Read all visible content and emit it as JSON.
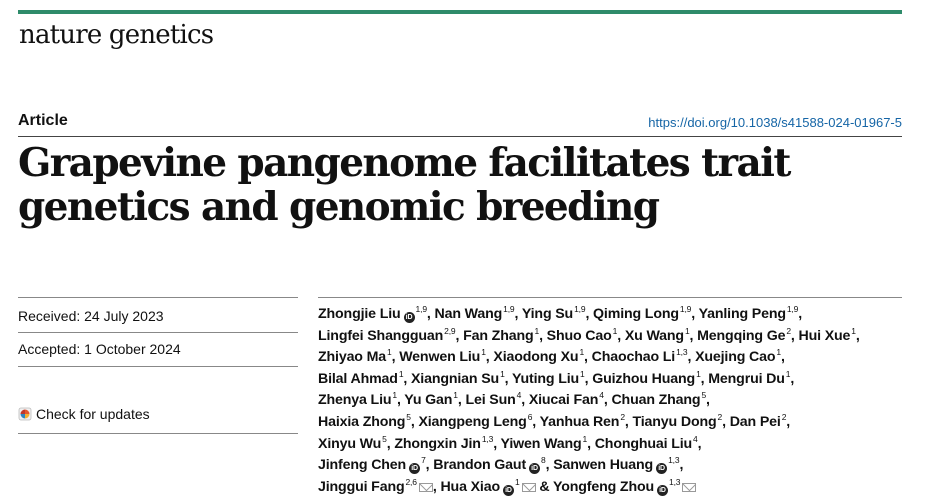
{
  "header": {
    "journal": "nature genetics",
    "section": "Article",
    "doi": "https://doi.org/10.1038/s41588-024-01967-5",
    "brand_color": "#2e8b6a"
  },
  "title": {
    "line1": "Grapevine pangenome facilitates trait",
    "line2": "genetics and genomic breeding"
  },
  "meta": {
    "received": "Received: 24 July 2023",
    "accepted": "Accepted: 1 October 2024",
    "check_updates": "Check for updates"
  },
  "authors": [
    {
      "name": "Zhongjie Liu",
      "sup": "1,9",
      "orcid": true
    },
    {
      "name": "Nan Wang",
      "sup": "1,9"
    },
    {
      "name": "Ying Su",
      "sup": "1,9"
    },
    {
      "name": "Qiming Long",
      "sup": "1,9"
    },
    {
      "name": "Yanling Peng",
      "sup": "1,9"
    },
    {
      "name": "Lingfei Shangguan",
      "sup": "2,9"
    },
    {
      "name": "Fan Zhang",
      "sup": "1"
    },
    {
      "name": "Shuo Cao",
      "sup": "1"
    },
    {
      "name": "Xu Wang",
      "sup": "1"
    },
    {
      "name": "Mengqing Ge",
      "sup": "2"
    },
    {
      "name": "Hui Xue",
      "sup": "1"
    },
    {
      "name": "Zhiyao Ma",
      "sup": "1"
    },
    {
      "name": "Wenwen Liu",
      "sup": "1"
    },
    {
      "name": "Xiaodong Xu",
      "sup": "1"
    },
    {
      "name": "Chaochao Li",
      "sup": "1,3"
    },
    {
      "name": "Xuejing Cao",
      "sup": "1"
    },
    {
      "name": "Bilal Ahmad",
      "sup": "1"
    },
    {
      "name": "Xiangnian Su",
      "sup": "1"
    },
    {
      "name": "Yuting Liu",
      "sup": "1"
    },
    {
      "name": "Guizhou Huang",
      "sup": "1"
    },
    {
      "name": "Mengrui Du",
      "sup": "1"
    },
    {
      "name": "Zhenya Liu",
      "sup": "1"
    },
    {
      "name": "Yu Gan",
      "sup": "1"
    },
    {
      "name": "Lei Sun",
      "sup": "4"
    },
    {
      "name": "Xiucai Fan",
      "sup": "4"
    },
    {
      "name": "Chuan Zhang",
      "sup": "5"
    },
    {
      "name": "Haixia Zhong",
      "sup": "5"
    },
    {
      "name": "Xiangpeng Leng",
      "sup": "6"
    },
    {
      "name": "Yanhua Ren",
      "sup": "2"
    },
    {
      "name": "Tianyu Dong",
      "sup": "2"
    },
    {
      "name": "Dan Pei",
      "sup": "2"
    },
    {
      "name": "Xinyu Wu",
      "sup": "5"
    },
    {
      "name": "Zhongxin Jin",
      "sup": "1,3"
    },
    {
      "name": "Yiwen Wang",
      "sup": "1"
    },
    {
      "name": "Chonghuai Liu",
      "sup": "4"
    },
    {
      "name": "Jinfeng Chen",
      "sup": "7",
      "orcid": true
    },
    {
      "name": "Brandon Gaut",
      "sup": "8",
      "orcid": true
    },
    {
      "name": "Sanwen Huang",
      "sup": "1,3",
      "orcid": true
    },
    {
      "name": "Jinggui Fang",
      "sup": "2,6",
      "mail": true
    },
    {
      "name": "Hua Xiao",
      "sup": "1",
      "orcid": true,
      "mail": true
    },
    {
      "name": "Yongfeng Zhou",
      "sup": "1,3",
      "orcid": true,
      "mail": true
    }
  ],
  "orcid_mark": "iD",
  "author_lines": [
    5,
    6,
    5,
    5,
    5,
    5,
    4,
    3,
    3
  ]
}
